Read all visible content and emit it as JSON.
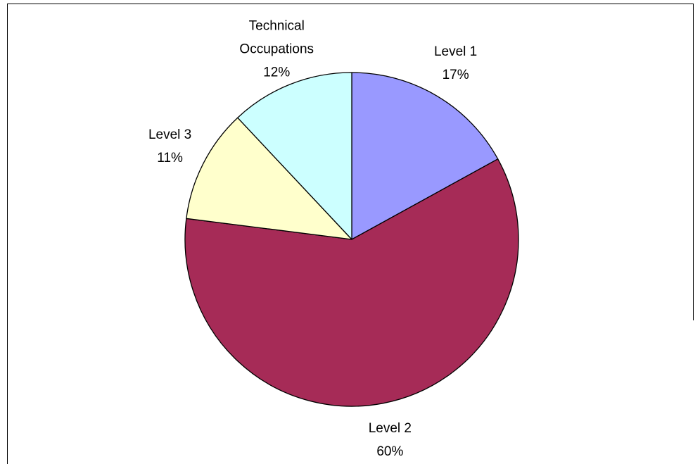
{
  "chart_data": {
    "type": "pie",
    "categories": [
      "Level 1",
      "Level 2",
      "Level 3",
      "Technical Occupations"
    ],
    "values": [
      17,
      60,
      11,
      12
    ],
    "value_labels": [
      "17%",
      "60%",
      "11%",
      "12%"
    ],
    "colors": [
      "#9999ff",
      "#a62b57",
      "#ffffcc",
      "#ccffff"
    ]
  }
}
